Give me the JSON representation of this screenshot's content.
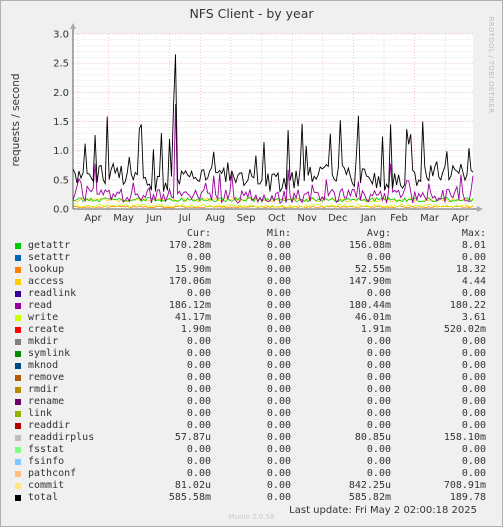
{
  "title": "NFS Client - by year",
  "side_tag": "RRDTOOL / TOBI OETIKER",
  "watermark": "Munin 2.0.58",
  "last_update": "Last update: Fri May  2 02:00:18 2025",
  "legend_headers": {
    "cur": "Cur:",
    "min": "Min:",
    "avg": "Avg:",
    "max": "Max:"
  },
  "chart_data": {
    "type": "line",
    "title": "NFS Client - by year",
    "ylabel": "requests / second",
    "xlabel": "",
    "ylim": [
      0,
      3.0
    ],
    "yticks": [
      "0.0",
      "0.5",
      "1.0",
      "1.5",
      "2.0",
      "2.5",
      "3.0"
    ],
    "ytick_values": [
      0,
      0.5,
      1.0,
      1.5,
      2.0,
      2.5,
      3.0
    ],
    "months": [
      "Apr",
      "May",
      "Jun",
      "Jul",
      "Aug",
      "Sep",
      "Oct",
      "Nov",
      "Dec",
      "Jan",
      "Feb",
      "Mar",
      "Apr"
    ],
    "grid": true,
    "series": [
      {
        "name": "getattr",
        "color": "#00cc00",
        "cur": "170.28m",
        "min": "0.00",
        "avg": "156.08m",
        "max": "8.01"
      },
      {
        "name": "setattr",
        "color": "#0066b3",
        "cur": "0.00",
        "min": "0.00",
        "avg": "0.00",
        "max": "0.00"
      },
      {
        "name": "lookup",
        "color": "#ff8000",
        "cur": "15.90m",
        "min": "0.00",
        "avg": "52.55m",
        "max": "18.32"
      },
      {
        "name": "access",
        "color": "#ffcc00",
        "cur": "170.06m",
        "min": "0.00",
        "avg": "147.90m",
        "max": "4.44"
      },
      {
        "name": "readlink",
        "color": "#330099",
        "cur": "0.00",
        "min": "0.00",
        "avg": "0.00",
        "max": "0.00"
      },
      {
        "name": "read",
        "color": "#990099",
        "cur": "186.12m",
        "min": "0.00",
        "avg": "180.44m",
        "max": "180.22"
      },
      {
        "name": "write",
        "color": "#ccff00",
        "cur": "41.17m",
        "min": "0.00",
        "avg": "46.01m",
        "max": "3.61"
      },
      {
        "name": "create",
        "color": "#ff0000",
        "cur": "1.90m",
        "min": "0.00",
        "avg": "1.91m",
        "max": "520.02m"
      },
      {
        "name": "mkdir",
        "color": "#808080",
        "cur": "0.00",
        "min": "0.00",
        "avg": "0.00",
        "max": "0.00"
      },
      {
        "name": "symlink",
        "color": "#008f00",
        "cur": "0.00",
        "min": "0.00",
        "avg": "0.00",
        "max": "0.00"
      },
      {
        "name": "mknod",
        "color": "#00487d",
        "cur": "0.00",
        "min": "0.00",
        "avg": "0.00",
        "max": "0.00"
      },
      {
        "name": "remove",
        "color": "#b35a00",
        "cur": "0.00",
        "min": "0.00",
        "avg": "0.00",
        "max": "0.00"
      },
      {
        "name": "rmdir",
        "color": "#b38f00",
        "cur": "0.00",
        "min": "0.00",
        "avg": "0.00",
        "max": "0.00"
      },
      {
        "name": "rename",
        "color": "#6b006b",
        "cur": "0.00",
        "min": "0.00",
        "avg": "0.00",
        "max": "0.00"
      },
      {
        "name": "link",
        "color": "#8fb300",
        "cur": "0.00",
        "min": "0.00",
        "avg": "0.00",
        "max": "0.00"
      },
      {
        "name": "readdir",
        "color": "#b30000",
        "cur": "0.00",
        "min": "0.00",
        "avg": "0.00",
        "max": "0.00"
      },
      {
        "name": "readdirplus",
        "color": "#bebebe",
        "cur": "57.87u",
        "min": "0.00",
        "avg": "80.85u",
        "max": "158.10m"
      },
      {
        "name": "fsstat",
        "color": "#80ff80",
        "cur": "0.00",
        "min": "0.00",
        "avg": "0.00",
        "max": "0.00"
      },
      {
        "name": "fsinfo",
        "color": "#80c9ff",
        "cur": "0.00",
        "min": "0.00",
        "avg": "0.00",
        "max": "0.00"
      },
      {
        "name": "pathconf",
        "color": "#ffc080",
        "cur": "0.00",
        "min": "0.00",
        "avg": "0.00",
        "max": "0.00"
      },
      {
        "name": "commit",
        "color": "#ffe680",
        "cur": "81.02u",
        "min": "0.00",
        "avg": "842.25u",
        "max": "708.91m"
      },
      {
        "name": "total",
        "color": "#000000",
        "cur": "585.58m",
        "min": "0.00",
        "avg": "585.82m",
        "max": "189.78"
      }
    ]
  }
}
